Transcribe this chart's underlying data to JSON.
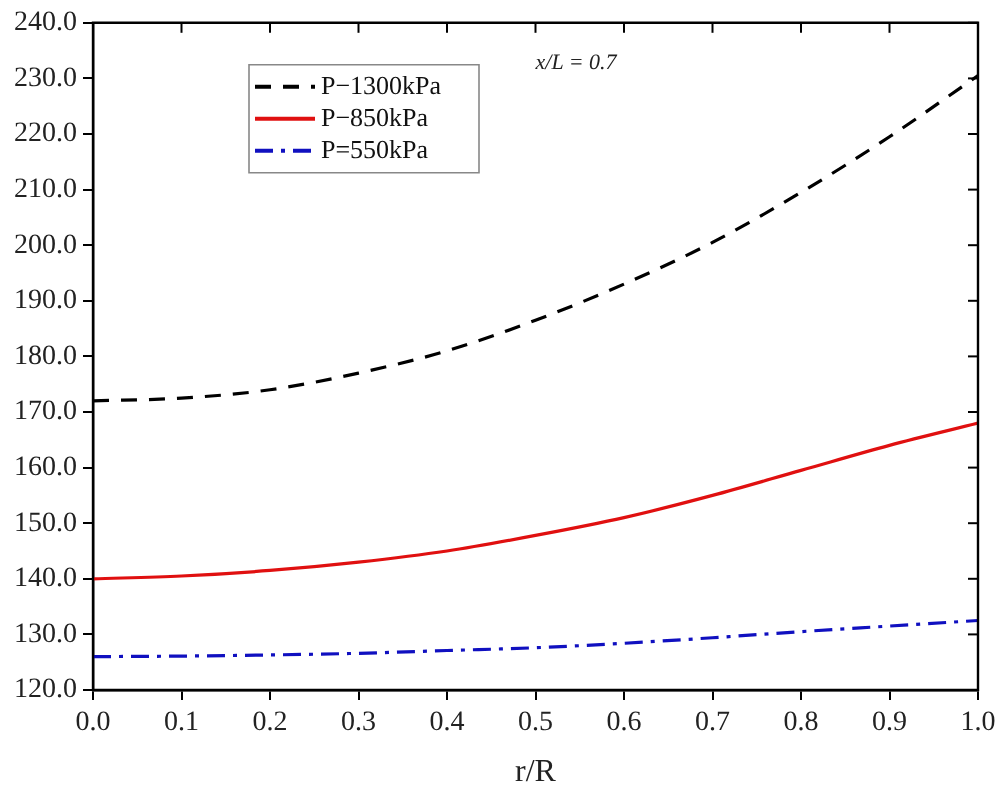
{
  "chart_data": {
    "type": "line",
    "xlabel": "r/R",
    "x": [
      0,
      0.1,
      0.2,
      0.3,
      0.4,
      0.5,
      0.6,
      0.7,
      0.8,
      0.9,
      1.0
    ],
    "series": [
      {
        "name": "P−1300kPa",
        "color": "#000000",
        "line_style": "dashed",
        "values": [
          172,
          172.5,
          174,
          177,
          181,
          186.5,
          193,
          200.5,
          209.5,
          219.5,
          230.5
        ]
      },
      {
        "name": "P−850kPa",
        "color": "#e01010",
        "line_style": "solid",
        "values": [
          140,
          140.5,
          141.5,
          143,
          145,
          147.8,
          151,
          155,
          159.5,
          164,
          168
        ]
      },
      {
        "name": "P=550kPa",
        "color": "#1010c0",
        "line_style": "dashdot",
        "values": [
          126,
          126.1,
          126.3,
          126.6,
          127.1,
          127.6,
          128.4,
          129.4,
          130.5,
          131.5,
          132.5
        ]
      }
    ],
    "xlim": [
      0,
      1
    ],
    "xticks": [
      {
        "value": 0,
        "label": "0.0"
      },
      {
        "value": 0.1,
        "label": "0.1"
      },
      {
        "value": 0.2,
        "label": "0.2"
      },
      {
        "value": 0.3,
        "label": "0.3"
      },
      {
        "value": 0.4,
        "label": "0.4"
      },
      {
        "value": 0.5,
        "label": "0.5"
      },
      {
        "value": 0.6,
        "label": "0.6"
      },
      {
        "value": 0.7,
        "label": "0.7"
      },
      {
        "value": 0.8,
        "label": "0.8"
      },
      {
        "value": 0.9,
        "label": "0.9"
      },
      {
        "value": 1,
        "label": "1.0"
      }
    ],
    "ylim": [
      120,
      240
    ],
    "yticks": [
      {
        "value": 120,
        "label": "120.0"
      },
      {
        "value": 130,
        "label": "130.0"
      },
      {
        "value": 140,
        "label": "140.0"
      },
      {
        "value": 150,
        "label": "150.0"
      },
      {
        "value": 160,
        "label": "160.0"
      },
      {
        "value": 170,
        "label": "170.0"
      },
      {
        "value": 180,
        "label": "180.0"
      },
      {
        "value": 190,
        "label": "190.0"
      },
      {
        "value": 200,
        "label": "200.0"
      },
      {
        "value": 210,
        "label": "210.0"
      },
      {
        "value": 220,
        "label": "220.0"
      },
      {
        "value": 230,
        "label": "230.0"
      },
      {
        "value": 240,
        "label": "240.0"
      }
    ],
    "annotations": [
      "x/L = 0.7"
    ],
    "legend": "top left",
    "grid": false,
    "marker": "none"
  }
}
